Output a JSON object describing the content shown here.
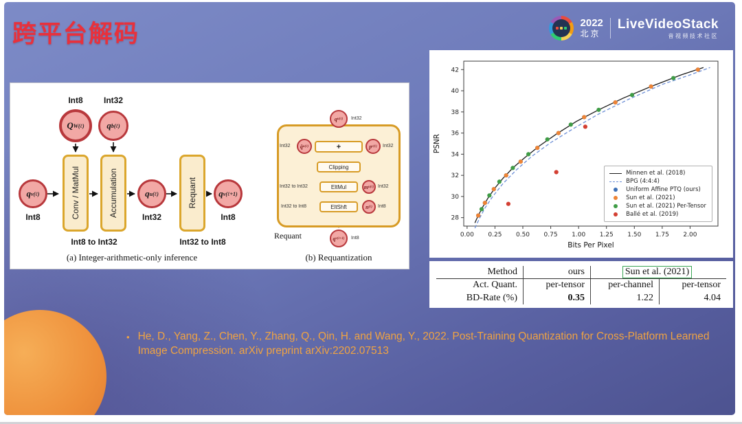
{
  "slide": {
    "title": "跨平台解码",
    "header": {
      "year": "2022",
      "city": "北京",
      "brand": "LiveVideoStack",
      "brand_tagline": "音视频技术社区"
    },
    "citation": {
      "bullet": "•",
      "text": "He, D., Yang, Z., Chen, Y., Zhang, Q., Qin, H. and Wang, Y., 2022. Post-Training Quantization for Cross-Platform Learned Image Compression. arXiv preprint arXiv:2202.07513"
    }
  },
  "diagram": {
    "caption_a": "(a) Integer-arithmetic-only inference",
    "caption_b": "(b) Requantization",
    "labels": {
      "int8": "Int8",
      "int32": "Int32",
      "int8_to_int32": "Int8 to Int32",
      "int32_to_int8": "Int32 to Int8",
      "int32_to_int32": "Int32 to Int32"
    },
    "blocks": {
      "conv": "Conv / MatMul",
      "accum": "Accumulation",
      "requant": "Requant",
      "plus": "+",
      "clipping": "Clipping",
      "eltmul": "EltMul",
      "eltshft": "EltShft"
    },
    "nodes": {
      "qv": {
        "base": "q",
        "sub": "v",
        "sup": "(ℓ)"
      },
      "qw": {
        "base": "Q",
        "sub": "W",
        "sup": "(ℓ)"
      },
      "qb": {
        "base": "q",
        "sub": "b",
        "sup": "(ℓ)"
      },
      "qu": {
        "base": "q",
        "sub": "u",
        "sup": "(ℓ)"
      },
      "qv_next": {
        "base": "q",
        "sub": "v",
        "sup": "(ℓ+1)"
      },
      "qu_top": {
        "base": "q",
        "sub": "u",
        "sup": "(ℓ)"
      },
      "qhat": {
        "base": "q̂",
        "sub": "u",
        "sup": "(ℓ)"
      },
      "p": {
        "base": "p",
        "sub": "v",
        "sup": "(ℓ)"
      },
      "m": {
        "base": "m",
        "sub": "u",
        "sup": "(ℓ)"
      },
      "n": {
        "base": "n",
        "sub": "",
        "sup": "(ℓ)"
      },
      "qv_out": {
        "base": "q",
        "sub": "v",
        "sup": "(ℓ+1)"
      }
    }
  },
  "chart_data": {
    "type": "line",
    "title": "",
    "xlabel": "Bits Per Pixel",
    "ylabel": "PSNR",
    "xlim": [
      -0.03,
      2.25
    ],
    "ylim": [
      27.2,
      42.8
    ],
    "xticks": [
      0.0,
      0.25,
      0.5,
      0.75,
      1.0,
      1.25,
      1.5,
      1.75,
      2.0
    ],
    "yticks": [
      28,
      30,
      32,
      34,
      36,
      38,
      40,
      42
    ],
    "grid": false,
    "legend_position": "lower right",
    "series": [
      {
        "name": "Minnen et al. (2018)",
        "style": "line",
        "color": "#1a1a1a",
        "x": [
          0.07,
          0.1,
          0.14,
          0.19,
          0.25,
          0.32,
          0.41,
          0.52,
          0.65,
          0.8,
          0.98,
          1.18,
          1.4,
          1.65,
          1.92,
          2.12
        ],
        "y": [
          27.5,
          28.2,
          29.0,
          29.9,
          30.8,
          31.7,
          32.7,
          33.7,
          34.8,
          35.9,
          37.1,
          38.2,
          39.3,
          40.4,
          41.5,
          42.2
        ]
      },
      {
        "name": "BPG (4:4:4)",
        "style": "dashed",
        "color": "#6b8ed6",
        "x": [
          0.07,
          0.11,
          0.16,
          0.23,
          0.32,
          0.44,
          0.58,
          0.75,
          0.95,
          1.18,
          1.45,
          1.75,
          2.0,
          2.18
        ],
        "y": [
          27.0,
          27.9,
          28.9,
          30.0,
          31.2,
          32.5,
          33.8,
          35.1,
          36.4,
          37.8,
          39.2,
          40.6,
          41.5,
          42.2
        ]
      },
      {
        "name": "Uniform Affine PTQ (ours)",
        "style": "scatter",
        "color": "#3c6fb6",
        "x": [
          0.1,
          0.16,
          0.24,
          0.35,
          0.48,
          0.63,
          0.82,
          1.05,
          1.33,
          1.65,
          2.07
        ],
        "y": [
          28.2,
          29.4,
          30.7,
          32.0,
          33.3,
          34.6,
          36.0,
          37.5,
          38.9,
          40.4,
          42.0
        ]
      },
      {
        "name": "Sun et al. (2021)",
        "style": "scatter",
        "color": "#ee8435",
        "x": [
          0.1,
          0.16,
          0.24,
          0.35,
          0.48,
          0.63,
          0.82,
          1.05,
          1.33,
          1.65,
          2.07
        ],
        "y": [
          28.2,
          29.4,
          30.7,
          32.0,
          33.3,
          34.6,
          36.0,
          37.5,
          38.9,
          40.4,
          42.0
        ]
      },
      {
        "name": "Sun et al. (2021) Per-Tensor",
        "style": "scatter",
        "color": "#3f9c46",
        "x": [
          0.13,
          0.2,
          0.29,
          0.41,
          0.55,
          0.72,
          0.93,
          1.18,
          1.48,
          1.85
        ],
        "y": [
          28.8,
          30.1,
          31.4,
          32.7,
          34.0,
          35.4,
          36.8,
          38.2,
          39.6,
          41.2
        ]
      },
      {
        "name": "Ballé et al. (2019)",
        "style": "scatter",
        "color": "#d33f32",
        "x": [
          0.37,
          0.8,
          1.06
        ],
        "y": [
          29.3,
          32.3,
          36.6
        ]
      }
    ]
  },
  "table": {
    "col_method": "Method",
    "col_ours": "ours",
    "col_sun": "Sun et al. (2021)",
    "rows": [
      {
        "label": "Act. Quant.",
        "ours": "per-tensor",
        "sun_a": "per-channel",
        "sun_b": "per-tensor"
      },
      {
        "label": "BD-Rate (%)",
        "ours": "0.35",
        "sun_a": "1.22",
        "sun_b": "4.04"
      }
    ]
  }
}
